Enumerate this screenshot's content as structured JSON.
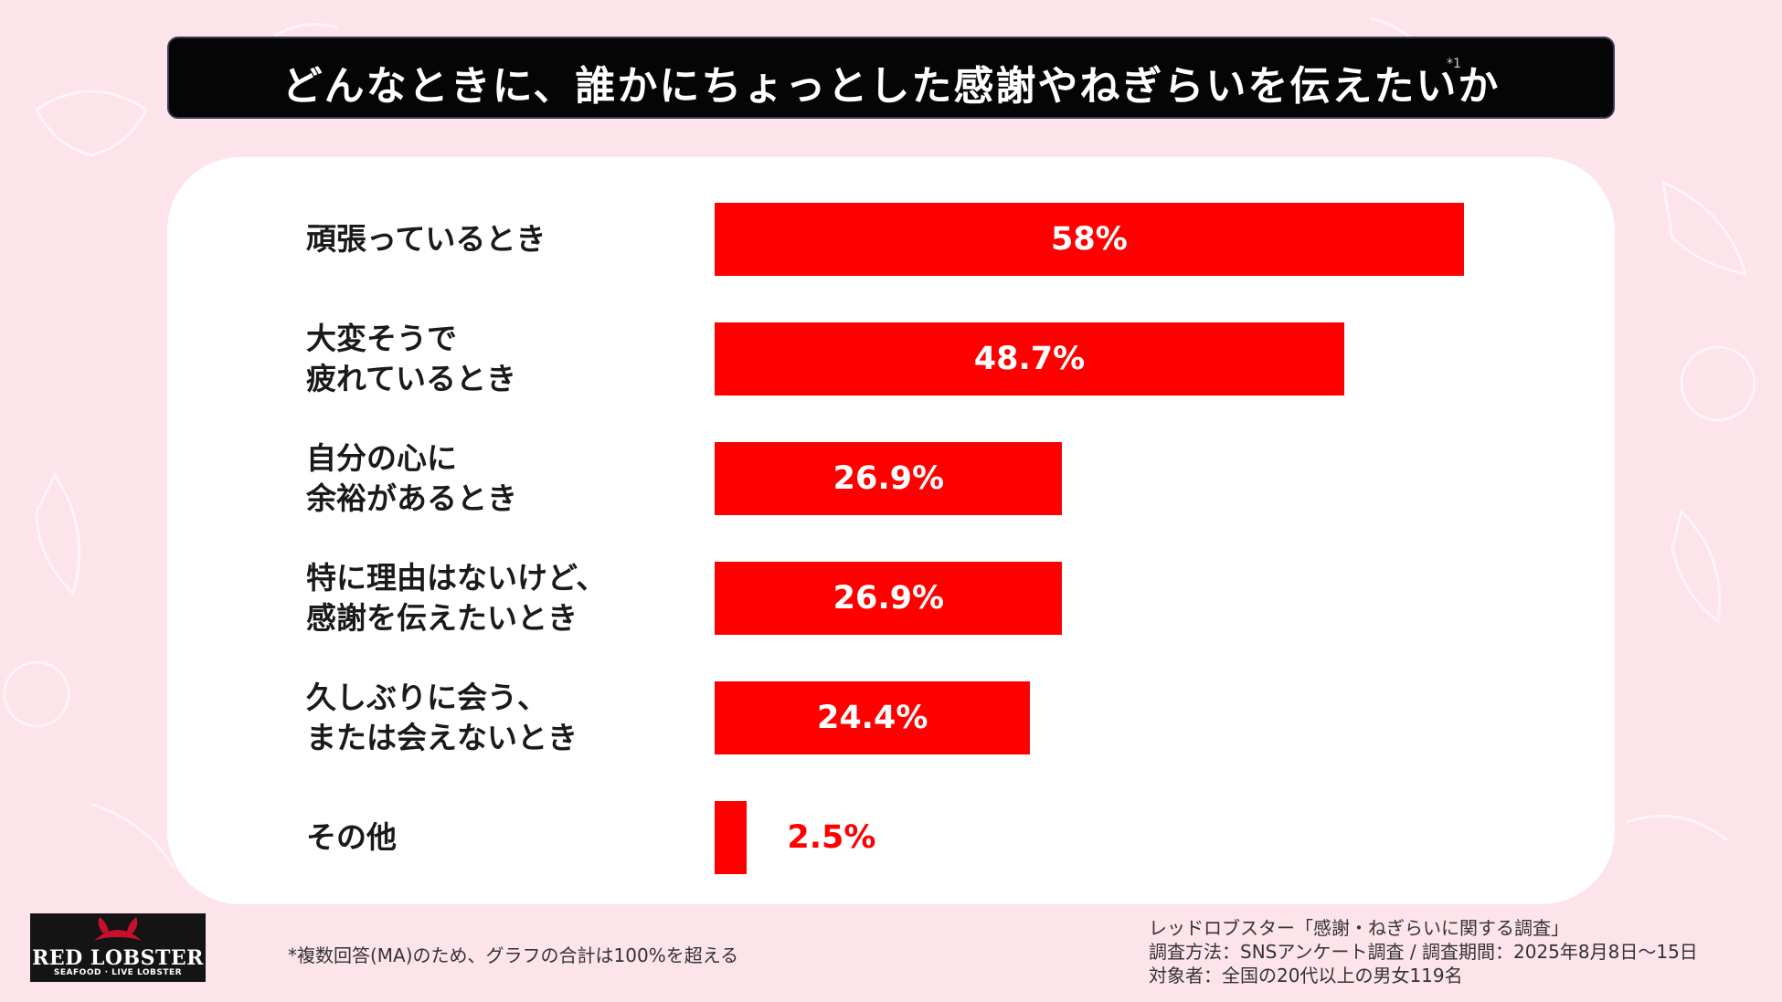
{
  "title": "どんなときに、誰かにちょっとした感謝やねぎらいを伝えたいか",
  "title_note": "*1",
  "chart_data": {
    "type": "bar",
    "orientation": "horizontal",
    "categories": [
      "頑張っているとき",
      "大変そうで\n疲れているとき",
      "自分の心に\n余裕があるとき",
      "特に理由はないけど、\n感謝を伝えたいとき",
      "久しぶりに会う、\nまたは会えないとき",
      "その他"
    ],
    "values": [
      58,
      48.7,
      26.9,
      26.9,
      24.4,
      2.5
    ],
    "value_labels": [
      "58%",
      "48.7%",
      "26.9%",
      "26.9%",
      "24.4%",
      "2.5%"
    ],
    "unit": "%",
    "bar_color": "#ff0000",
    "label_color_inside": "#ffffff",
    "label_color_outside": "#ff0000",
    "grid": false,
    "xlim": [
      0,
      100
    ]
  },
  "footnote": "*複数回答(MA)のため、グラフの合計は100%を超える",
  "source": {
    "line1": "レッドロブスター「感謝・ねぎらいに関する調査」",
    "line2": "調査方法：SNSアンケート調査 / 調査期間：2025年8月8日〜15日",
    "line3": "対象者：全国の20代以上の男女119名"
  },
  "logo": {
    "main": "RED LOBSTER",
    "sub": "SEAFOOD · LIVE LOBSTER"
  },
  "colors": {
    "background": "#fde3ea",
    "title_bg": "#050505",
    "accent": "#ff0000"
  }
}
